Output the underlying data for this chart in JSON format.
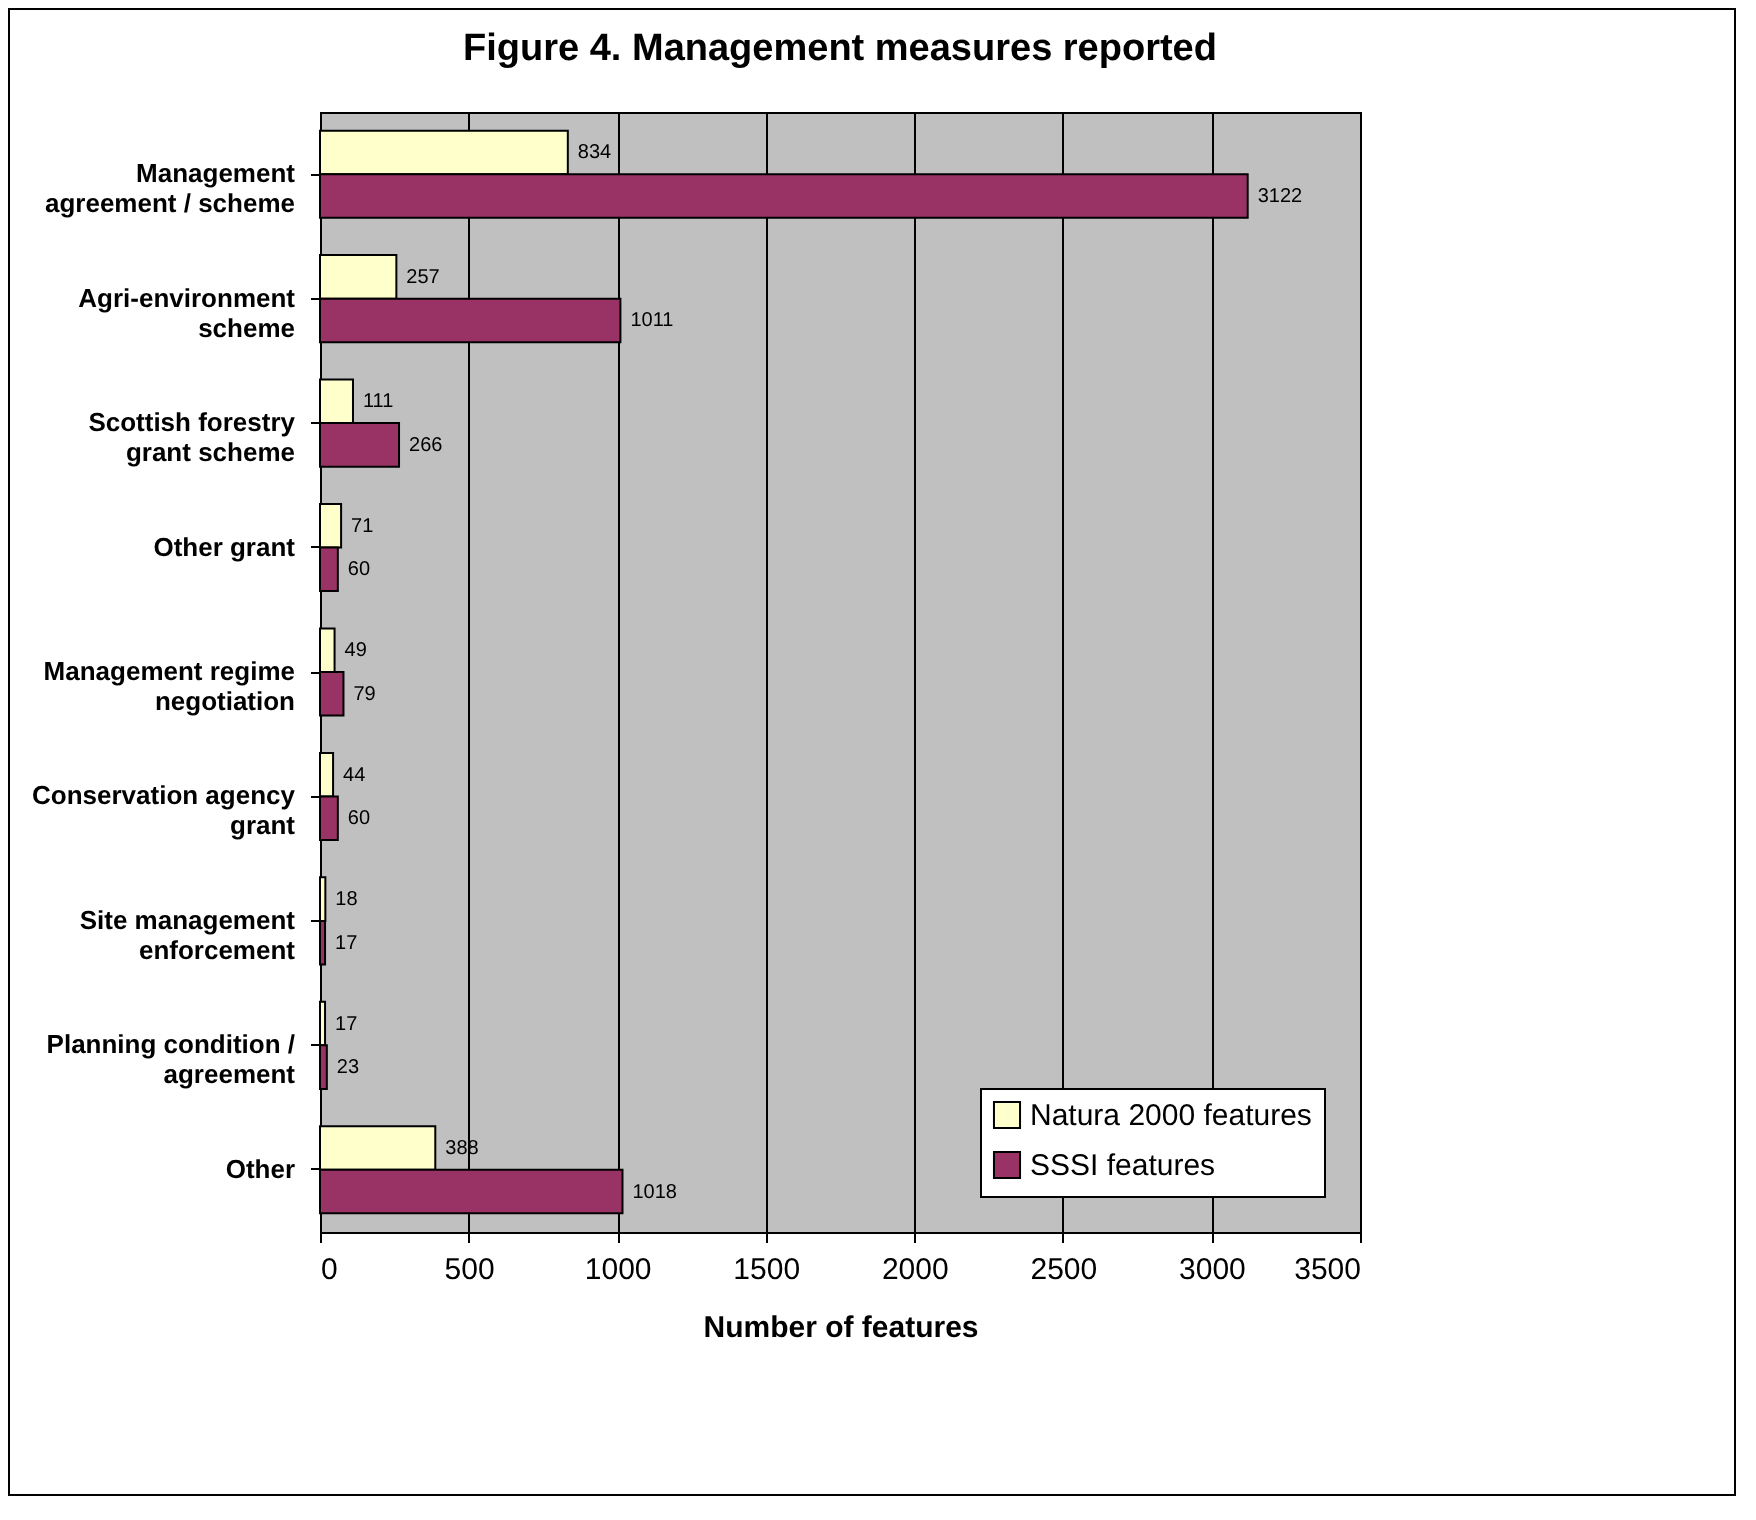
{
  "chart_data": {
    "type": "bar",
    "orientation": "horizontal",
    "title": "Figure 4.  Management measures reported",
    "xlabel": "Number of features",
    "categories": [
      "Management agreement / scheme",
      "Agri-environment scheme",
      "Scottish forestry grant scheme",
      "Other grant",
      "Management regime negotiation",
      "Conservation agency grant",
      "Site management enforcement",
      "Planning condition / agreement",
      "Other"
    ],
    "series": [
      {
        "name": "Natura 2000 features",
        "color": "#ffffcc",
        "values": [
          834,
          257,
          111,
          71,
          49,
          44,
          18,
          17,
          388
        ]
      },
      {
        "name": "SSSI features",
        "color": "#993366",
        "values": [
          3122,
          1011,
          266,
          60,
          79,
          60,
          17,
          23,
          1018
        ]
      }
    ],
    "xlim": [
      0,
      3500
    ],
    "xticks": [
      0,
      500,
      1000,
      1500,
      2000,
      2500,
      3000,
      3500
    ],
    "grid": "x",
    "legend": "bottom right",
    "data_labels": true
  }
}
